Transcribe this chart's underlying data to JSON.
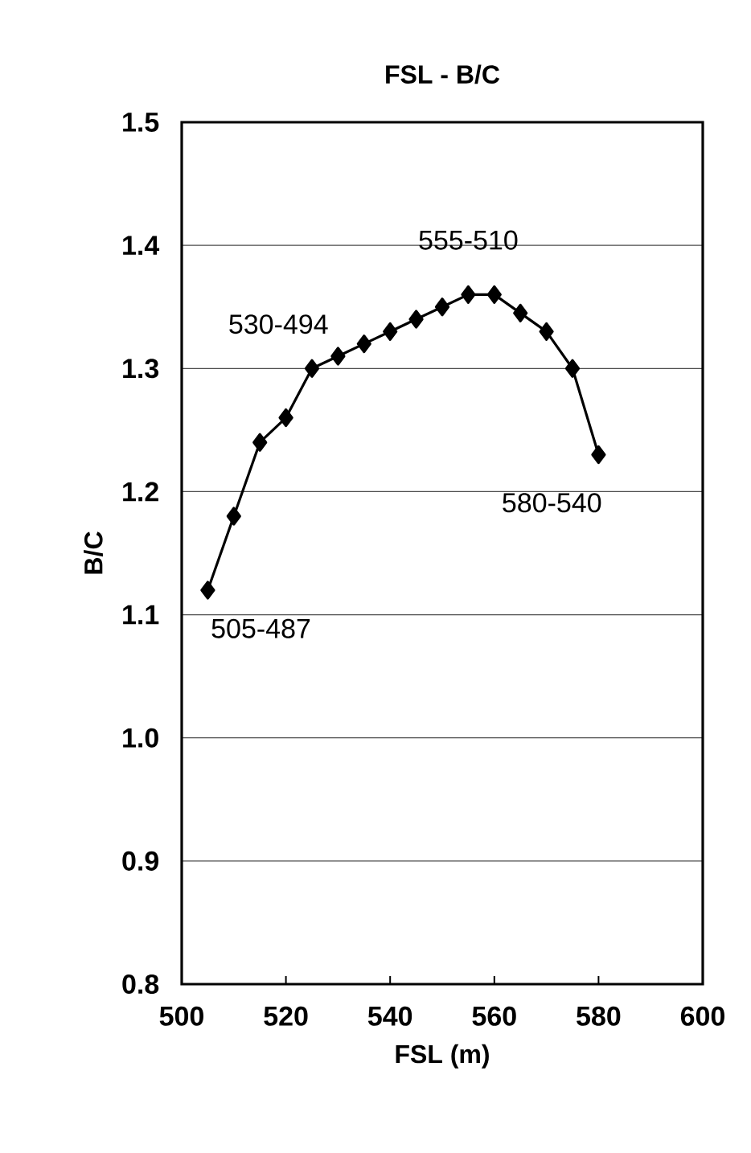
{
  "chart_data": {
    "type": "line",
    "title": "FSL - B/C",
    "xlabel": "FSL (m)",
    "ylabel": "B/C",
    "x": [
      505,
      510,
      515,
      520,
      525,
      530,
      535,
      540,
      545,
      550,
      555,
      560,
      565,
      570,
      575,
      580
    ],
    "series": [
      {
        "color": "#000000",
        "values": [
          1.12,
          1.18,
          1.24,
          1.26,
          1.3,
          1.31,
          1.32,
          1.33,
          1.34,
          1.35,
          1.36,
          1.36,
          1.345,
          1.33,
          1.3,
          1.23
        ]
      }
    ],
    "xlim": [
      500,
      600
    ],
    "xticks": [
      500,
      520,
      540,
      560,
      580,
      600
    ],
    "ylim": [
      0.8,
      1.5
    ],
    "yticks": [
      0.8,
      0.9,
      {
        "value": 1,
        "label": "1.0"
      },
      1.1,
      1.2,
      1.3,
      1.4,
      1.5
    ],
    "grid": "y",
    "marker": "diamond",
    "line_style": "solid",
    "annotations": [
      {
        "text": "505-487",
        "x": 505,
        "y": 1.12
      },
      {
        "text": "530-494",
        "x": 530,
        "y": 1.31
      },
      {
        "text": "555-510",
        "x": 555,
        "y": 1.36
      },
      {
        "text": "580-540",
        "x": 580,
        "y": 1.23
      }
    ]
  }
}
